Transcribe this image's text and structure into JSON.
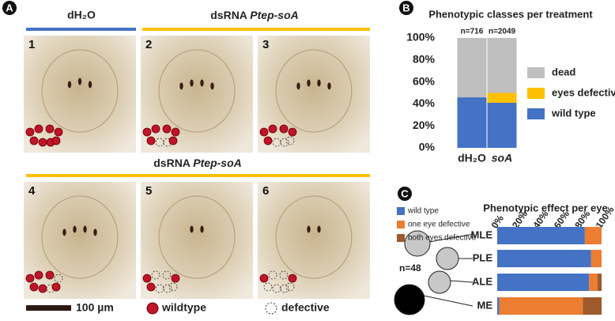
{
  "panel_a": {
    "label": "A",
    "header_control": "dH₂O",
    "header_treatment": {
      "prefix": "dsRNA",
      "gene": "Ptep-soA"
    },
    "header_row2": {
      "prefix": "dsRNA",
      "gene": "Ptep-soA"
    },
    "image_numbers": [
      "1",
      "2",
      "3",
      "4",
      "5",
      "6"
    ],
    "scale_bar": "100 µm",
    "legend": [
      "wildtype",
      "defective"
    ]
  },
  "chart_data": [
    {
      "type": "stacked-bar",
      "panel": "B",
      "title": "Phenotypic classes per treatment",
      "categories": [
        "dH₂O",
        "soA"
      ],
      "annotations": [
        "n=716",
        "n=2049"
      ],
      "series": [
        {
          "name": "wild type",
          "color": "#4472c4",
          "values": [
            46,
            41
          ]
        },
        {
          "name": "eyes defective",
          "color": "#ffc000",
          "values": [
            0,
            9
          ]
        },
        {
          "name": "dead",
          "color": "#bfbfbf",
          "values": [
            54,
            50
          ]
        }
      ],
      "ylim": [
        0,
        100
      ],
      "yticks": [
        {
          "value": 0,
          "label": "0%"
        },
        {
          "value": 20,
          "label": "20%"
        },
        {
          "value": 40,
          "label": "40%"
        },
        {
          "value": 60,
          "label": "60%"
        },
        {
          "value": 80,
          "label": "80%"
        },
        {
          "value": 100,
          "label": "100%"
        }
      ]
    },
    {
      "type": "stacked-barh",
      "panel": "C",
      "title": "Phenotypic effect per eye",
      "categories": [
        "MLE",
        "PLE",
        "ALE",
        "ME"
      ],
      "annotations": [
        "n=48"
      ],
      "series": [
        {
          "name": "wild type",
          "color": "#4472c4",
          "values": [
            84,
            90,
            88,
            2
          ]
        },
        {
          "name": "one eye defective",
          "color": "#ed7d31",
          "values": [
            16,
            10,
            8,
            80
          ]
        },
        {
          "name": "both eyes defective",
          "color": "#9e5a2a",
          "values": [
            0,
            0,
            4,
            18
          ]
        }
      ],
      "xlim": [
        0,
        100
      ],
      "xticks": [
        {
          "value": 0,
          "label": "0%"
        },
        {
          "value": 20,
          "label": "20%"
        },
        {
          "value": 40,
          "label": "40%"
        },
        {
          "value": 60,
          "label": "60%"
        },
        {
          "value": 80,
          "label": "80%"
        },
        {
          "value": 100,
          "label": "100%"
        }
      ]
    }
  ]
}
